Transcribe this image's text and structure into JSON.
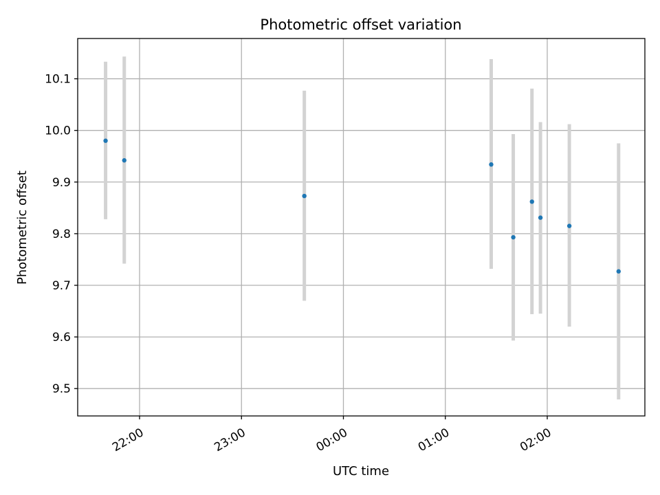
{
  "chart_data": {
    "type": "scatter",
    "title": "Photometric offset variation",
    "xlabel": "UTC time",
    "ylabel": "Photometric offset",
    "x_ticks": [
      "22:00",
      "23:00",
      "00:00",
      "01:00",
      "02:00"
    ],
    "y_ticks": [
      "9.5",
      "9.6",
      "9.7",
      "9.8",
      "9.9",
      "10.0",
      "10.1"
    ],
    "ylim": [
      9.447,
      10.178
    ],
    "grid": true,
    "series": [
      {
        "marker_color": "#1f77b4",
        "errorbar_color": "#d3d3d3",
        "points": [
          {
            "x": "21:40",
            "y": 9.98,
            "ymin": 9.828,
            "ymax": 10.133
          },
          {
            "x": "21:51",
            "y": 9.942,
            "ymin": 9.742,
            "ymax": 10.143
          },
          {
            "x": "23:37",
            "y": 9.873,
            "ymin": 9.67,
            "ymax": 10.077
          },
          {
            "x": "01:27",
            "y": 9.934,
            "ymin": 9.732,
            "ymax": 10.138
          },
          {
            "x": "01:40",
            "y": 9.793,
            "ymin": 9.593,
            "ymax": 9.993
          },
          {
            "x": "01:51",
            "y": 9.862,
            "ymin": 9.644,
            "ymax": 10.081
          },
          {
            "x": "01:56",
            "y": 9.831,
            "ymin": 9.645,
            "ymax": 10.016
          },
          {
            "x": "02:13",
            "y": 9.815,
            "ymin": 9.62,
            "ymax": 10.012
          },
          {
            "x": "02:42",
            "y": 9.727,
            "ymin": 9.479,
            "ymax": 9.975
          }
        ]
      }
    ]
  }
}
